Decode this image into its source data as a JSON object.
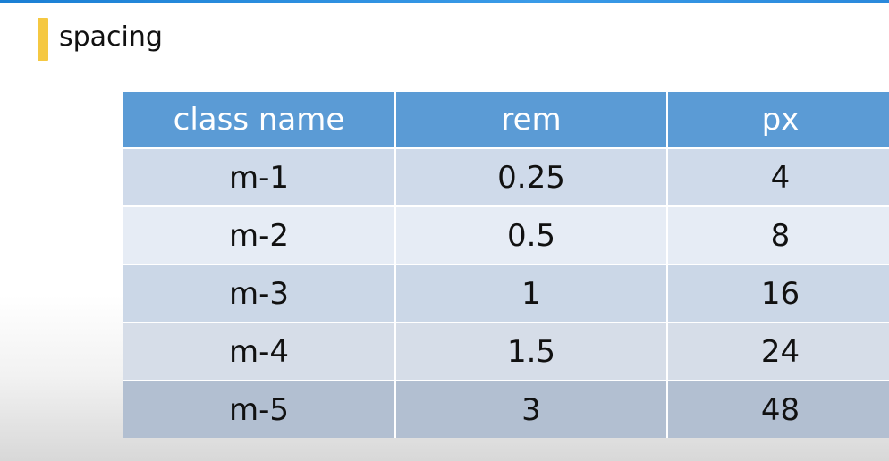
{
  "title": "spacing",
  "colors": {
    "accent_bar": "#f5c842",
    "header_bg": "#5b9bd5",
    "header_text": "#ffffff",
    "top_bar": "#1a7fd4"
  },
  "table": {
    "headers": [
      "class name",
      "rem",
      "px"
    ],
    "rows": [
      [
        "m-1",
        "0.25",
        "4"
      ],
      [
        "m-2",
        "0.5",
        "8"
      ],
      [
        "m-3",
        "1",
        "16"
      ],
      [
        "m-4",
        "1.5",
        "24"
      ],
      [
        "m-5",
        "3",
        "48"
      ]
    ]
  }
}
